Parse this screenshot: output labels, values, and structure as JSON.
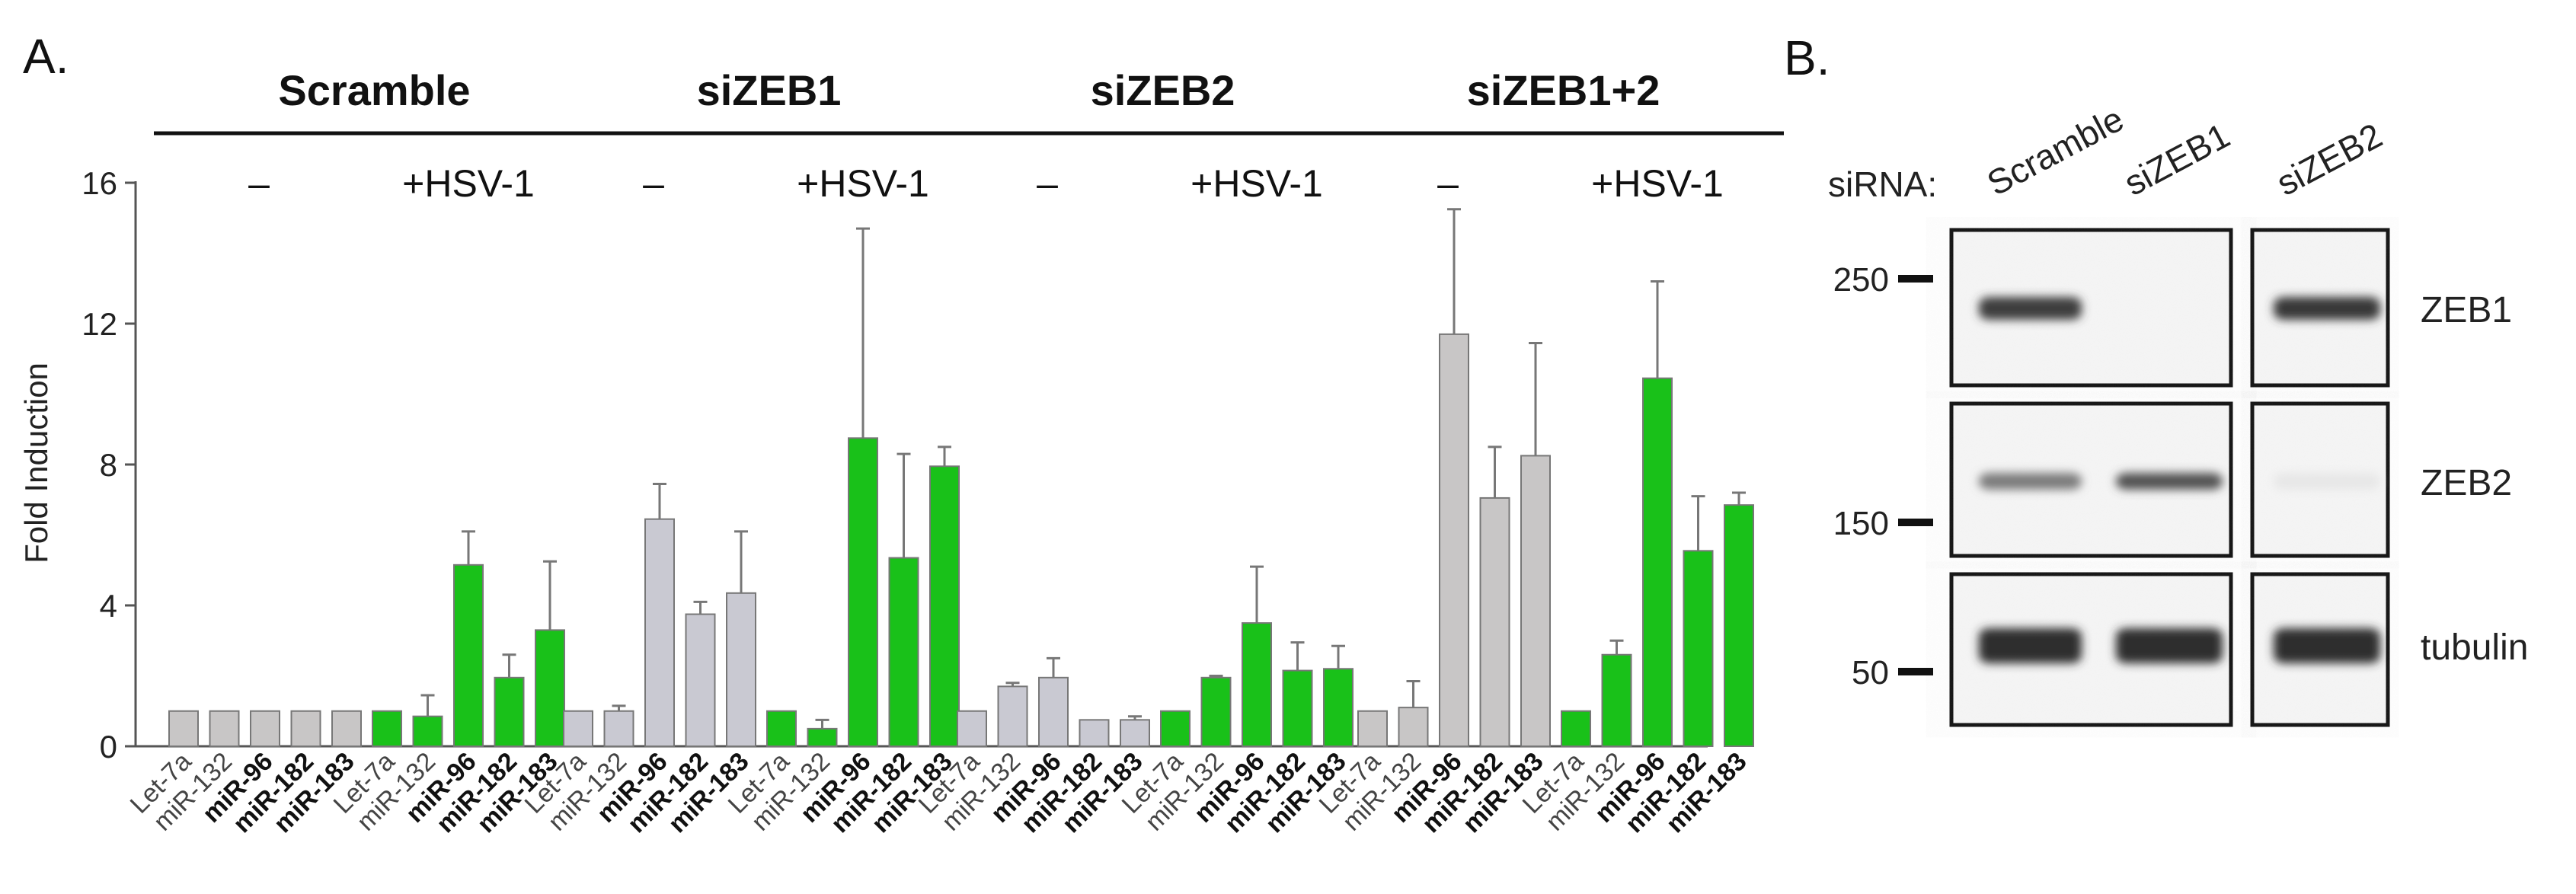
{
  "panel_a": {
    "label": "A.",
    "yaxis_label": "Fold Induction",
    "minus_label": "–",
    "hsv_label": "+HSV-1",
    "colors": {
      "uninfected": "#c8c6c6",
      "uninfected_grey_blue": "#c9c9d2",
      "infected": "#19c119",
      "edge": "#777777"
    }
  },
  "chart_data": {
    "type": "bar",
    "title": "",
    "xlabel": "",
    "ylabel": "Fold Induction",
    "ylim": [
      0,
      16
    ],
    "yticks": [
      0,
      4,
      8,
      12,
      16
    ],
    "categories": [
      "Let-7a",
      "miR-132",
      "miR-96",
      "miR-182",
      "miR-183"
    ],
    "bold_categories": [
      "miR-96",
      "miR-182",
      "miR-183"
    ],
    "groups": [
      {
        "name": "Scramble",
        "series": [
          {
            "name": "–",
            "condition": "uninfected",
            "values": [
              1,
              1,
              1,
              1,
              1
            ],
            "errors": [
              0,
              0,
              0,
              0,
              0
            ]
          },
          {
            "name": "+HSV-1",
            "condition": "infected",
            "values": [
              1,
              0.85,
              5.15,
              1.95,
              3.3
            ],
            "errors": [
              0,
              0.6,
              0.95,
              0.65,
              1.95
            ]
          }
        ]
      },
      {
        "name": "siZEB1",
        "series": [
          {
            "name": "–",
            "condition": "uninfected",
            "values": [
              1,
              1,
              6.45,
              3.75,
              4.35
            ],
            "errors": [
              0,
              0.15,
              1.0,
              0.35,
              1.75
            ]
          },
          {
            "name": "+HSV-1",
            "condition": "infected",
            "values": [
              1,
              0.5,
              8.75,
              5.35,
              7.95
            ],
            "errors": [
              0,
              0.25,
              5.95,
              2.95,
              0.55
            ]
          }
        ]
      },
      {
        "name": "siZEB2",
        "series": [
          {
            "name": "–",
            "condition": "uninfected",
            "values": [
              1,
              1.7,
              1.95,
              0.75,
              0.75
            ],
            "errors": [
              0,
              0.1,
              0.55,
              0,
              0.1
            ]
          },
          {
            "name": "+HSV-1",
            "condition": "infected",
            "values": [
              1,
              1.95,
              3.5,
              2.15,
              2.2
            ],
            "errors": [
              0,
              0.05,
              1.6,
              0.8,
              0.65
            ]
          }
        ]
      },
      {
        "name": "siZEB1+2",
        "series": [
          {
            "name": "–",
            "condition": "uninfected",
            "values": [
              1,
              1.1,
              11.7,
              7.05,
              8.25
            ],
            "errors": [
              0,
              0.75,
              3.55,
              1.45,
              3.2
            ]
          },
          {
            "name": "+HSV-1",
            "condition": "infected",
            "values": [
              1,
              2.6,
              10.45,
              5.55,
              6.85
            ],
            "errors": [
              0,
              0.4,
              2.75,
              1.55,
              0.35
            ]
          }
        ]
      }
    ]
  },
  "panel_b": {
    "label": "B.",
    "sirna_label": "siRNA:",
    "lanes": [
      "Scramble",
      "siZEB1",
      "siZEB2"
    ],
    "markers": [
      "250",
      "150",
      "50"
    ],
    "blots": [
      {
        "name": "ZEB1",
        "intensity": [
          0.85,
          0.0,
          0.88
        ]
      },
      {
        "name": "ZEB2",
        "intensity": [
          0.55,
          0.75,
          0.02
        ]
      },
      {
        "name": "tubulin",
        "intensity": [
          0.92,
          0.92,
          0.92
        ]
      }
    ]
  }
}
